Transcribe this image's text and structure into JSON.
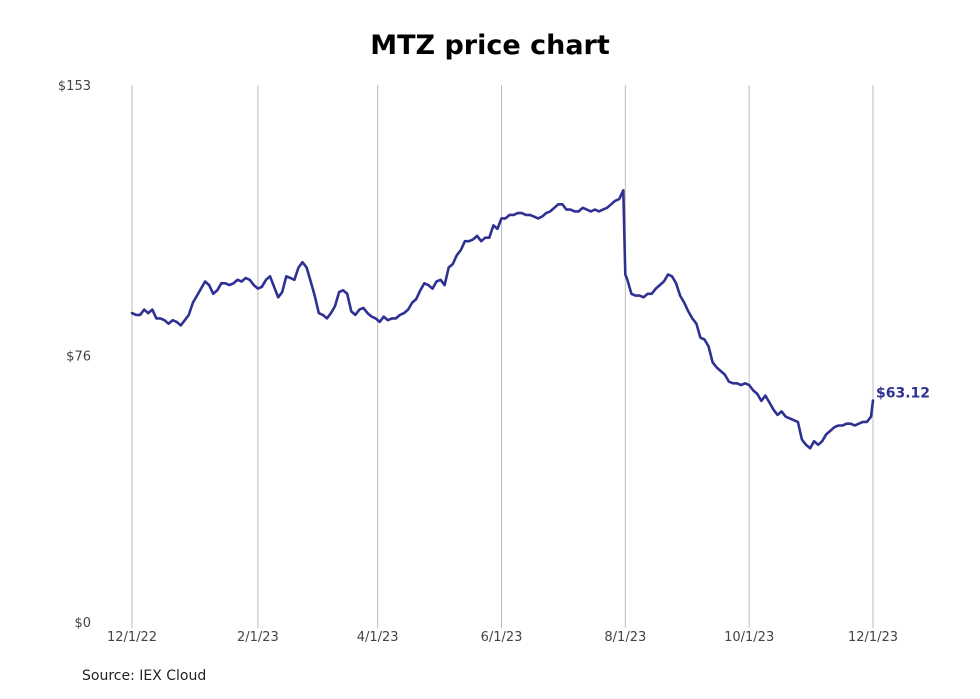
{
  "chart_data": {
    "type": "line",
    "title": "MTZ price chart",
    "source": "Source: IEX Cloud",
    "color": "#2e3192",
    "grid_color": "#bdbdbd",
    "grid": "vertical",
    "ylim": [
      0,
      153
    ],
    "y_ticks": [
      {
        "value": 0,
        "label": "$0"
      },
      {
        "value": 76,
        "label": "$76"
      },
      {
        "value": 153,
        "label": "$153"
      }
    ],
    "x_ticks": [
      "12/1/22",
      "2/1/23",
      "4/1/23",
      "6/1/23",
      "8/1/23",
      "10/1/23",
      "12/1/23"
    ],
    "end_label": "$63.12",
    "series": [
      {
        "x": [
          "2022-12-01",
          "2022-12-03",
          "2022-12-05",
          "2022-12-07",
          "2022-12-09",
          "2022-12-11",
          "2022-12-13",
          "2022-12-15",
          "2022-12-17",
          "2022-12-19",
          "2022-12-21",
          "2022-12-23",
          "2022-12-25",
          "2022-12-27",
          "2022-12-29",
          "2022-12-31",
          "2023-01-02",
          "2023-01-04",
          "2023-01-06",
          "2023-01-08",
          "2023-01-10",
          "2023-01-12",
          "2023-01-14",
          "2023-01-16",
          "2023-01-18",
          "2023-01-20",
          "2023-01-22",
          "2023-01-24",
          "2023-01-26",
          "2023-01-28",
          "2023-01-30",
          "2023-02-01",
          "2023-02-03",
          "2023-02-05",
          "2023-02-07",
          "2023-02-09",
          "2023-02-11",
          "2023-02-13",
          "2023-02-15",
          "2023-02-17",
          "2023-02-19",
          "2023-02-21",
          "2023-02-23",
          "2023-02-25",
          "2023-02-27",
          "2023-03-01",
          "2023-03-03",
          "2023-03-05",
          "2023-03-07",
          "2023-03-09",
          "2023-03-11",
          "2023-03-13",
          "2023-03-15",
          "2023-03-17",
          "2023-03-19",
          "2023-03-21",
          "2023-03-23",
          "2023-03-25",
          "2023-03-27",
          "2023-03-29",
          "2023-03-31",
          "2023-04-02",
          "2023-04-04",
          "2023-04-06",
          "2023-04-08",
          "2023-04-10",
          "2023-04-12",
          "2023-04-14",
          "2023-04-16",
          "2023-04-18",
          "2023-04-20",
          "2023-04-22",
          "2023-04-24",
          "2023-04-26",
          "2023-04-28",
          "2023-04-30",
          "2023-05-02",
          "2023-05-04",
          "2023-05-06",
          "2023-05-08",
          "2023-05-10",
          "2023-05-12",
          "2023-05-14",
          "2023-05-16",
          "2023-05-18",
          "2023-05-20",
          "2023-05-22",
          "2023-05-24",
          "2023-05-26",
          "2023-05-28",
          "2023-05-30",
          "2023-06-01",
          "2023-06-03",
          "2023-06-05",
          "2023-06-07",
          "2023-06-09",
          "2023-06-11",
          "2023-06-13",
          "2023-06-15",
          "2023-06-17",
          "2023-06-19",
          "2023-06-21",
          "2023-06-23",
          "2023-06-25",
          "2023-06-27",
          "2023-06-29",
          "2023-07-01",
          "2023-07-03",
          "2023-07-05",
          "2023-07-07",
          "2023-07-09",
          "2023-07-11",
          "2023-07-13",
          "2023-07-15",
          "2023-07-17",
          "2023-07-19",
          "2023-07-21",
          "2023-07-23",
          "2023-07-25",
          "2023-07-27",
          "2023-07-29",
          "2023-07-31",
          "2023-08-01",
          "2023-08-02",
          "2023-08-04",
          "2023-08-06",
          "2023-08-08",
          "2023-08-10",
          "2023-08-12",
          "2023-08-14",
          "2023-08-16",
          "2023-08-18",
          "2023-08-20",
          "2023-08-22",
          "2023-08-24",
          "2023-08-26",
          "2023-08-28",
          "2023-08-30",
          "2023-09-01",
          "2023-09-03",
          "2023-09-05",
          "2023-09-07",
          "2023-09-09",
          "2023-09-11",
          "2023-09-13",
          "2023-09-15",
          "2023-09-17",
          "2023-09-19",
          "2023-09-21",
          "2023-09-23",
          "2023-09-25",
          "2023-09-27",
          "2023-09-29",
          "2023-10-01",
          "2023-10-03",
          "2023-10-05",
          "2023-10-07",
          "2023-10-09",
          "2023-10-11",
          "2023-10-13",
          "2023-10-15",
          "2023-10-17",
          "2023-10-19",
          "2023-10-21",
          "2023-10-23",
          "2023-10-25",
          "2023-10-27",
          "2023-10-29",
          "2023-10-31",
          "2023-11-02",
          "2023-11-04",
          "2023-11-06",
          "2023-11-08",
          "2023-11-10",
          "2023-11-12",
          "2023-11-14",
          "2023-11-16",
          "2023-11-18",
          "2023-11-20",
          "2023-11-22",
          "2023-11-24",
          "2023-11-26",
          "2023-11-28",
          "2023-11-30",
          "2023-12-01"
        ],
        "y": [
          88.0,
          87.5,
          87.5,
          89.0,
          88.0,
          89.0,
          86.5,
          86.5,
          86.0,
          85.0,
          86.0,
          85.5,
          84.5,
          86.0,
          87.5,
          91.0,
          93.0,
          95.0,
          97.0,
          96.0,
          93.5,
          94.5,
          96.5,
          96.5,
          96.0,
          96.5,
          97.5,
          97.0,
          98.0,
          97.5,
          96.0,
          95.0,
          95.5,
          97.5,
          98.5,
          95.5,
          92.5,
          94.0,
          98.5,
          98.0,
          97.5,
          101.0,
          102.5,
          101.0,
          97.0,
          93.0,
          88.0,
          87.5,
          86.5,
          88.0,
          90.0,
          94.0,
          94.5,
          93.5,
          88.5,
          87.5,
          89.0,
          89.5,
          88.0,
          87.0,
          86.5,
          85.5,
          87.0,
          86.0,
          86.5,
          86.5,
          87.5,
          88.0,
          89.0,
          91.0,
          92.0,
          94.5,
          96.5,
          96.0,
          95.0,
          97.0,
          97.5,
          96.0,
          101.0,
          102.0,
          104.5,
          106.0,
          108.5,
          108.5,
          109.0,
          110.0,
          108.5,
          109.5,
          109.5,
          113.0,
          112.0,
          115.0,
          115.0,
          116.0,
          116.0,
          116.5,
          116.5,
          116.0,
          116.0,
          115.5,
          115.0,
          115.5,
          116.5,
          117.0,
          118.0,
          119.0,
          119.0,
          117.5,
          117.5,
          117.0,
          117.0,
          118.0,
          117.5,
          117.0,
          117.5,
          117.0,
          117.5,
          118.0,
          119.0,
          120.0,
          120.5,
          123.0,
          99.0,
          97.5,
          93.5,
          93.0,
          93.0,
          92.5,
          93.5,
          93.5,
          95.0,
          96.0,
          97.0,
          99.0,
          98.5,
          96.5,
          93.0,
          91.0,
          88.5,
          86.5,
          85.0,
          81.0,
          80.5,
          78.5,
          74.0,
          72.5,
          71.5,
          70.5,
          68.5,
          68.0,
          68.0,
          67.5,
          68.0,
          67.5,
          66.0,
          65.0,
          63.0,
          64.5,
          62.5,
          60.5,
          59.0,
          60.0,
          58.5,
          58.0,
          57.5,
          57.0,
          52.0,
          50.5,
          49.5,
          51.5,
          50.5,
          51.5,
          53.5,
          54.5,
          55.5,
          56.0,
          56.0,
          56.5,
          56.5,
          56.0,
          56.5,
          57.0,
          57.0,
          58.5,
          63.12
        ]
      }
    ]
  }
}
